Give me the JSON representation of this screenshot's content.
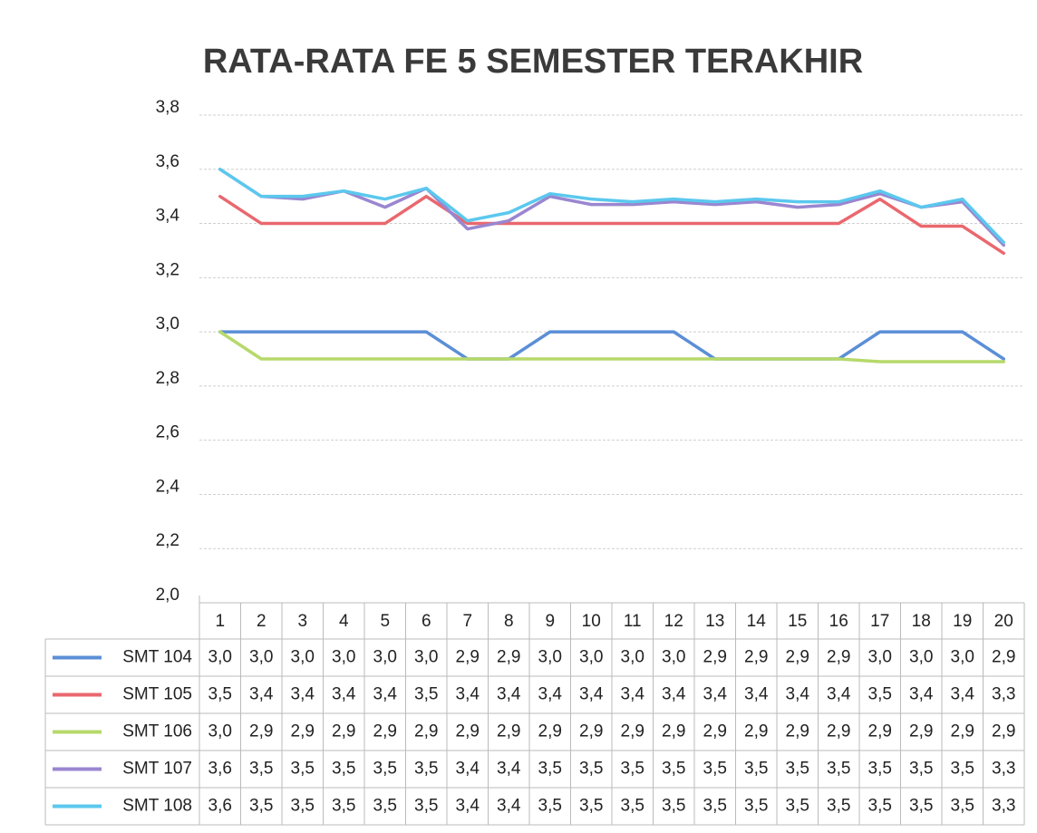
{
  "chart_data": {
    "type": "line",
    "title": "RATA-RATA FE 5 SEMESTER TERAKHIR",
    "categories": [
      "1",
      "2",
      "3",
      "4",
      "5",
      "6",
      "7",
      "8",
      "9",
      "10",
      "11",
      "12",
      "13",
      "14",
      "15",
      "16",
      "17",
      "18",
      "19",
      "20"
    ],
    "ylim": [
      2.0,
      3.8
    ],
    "yticks": [
      {
        "value": 2.0,
        "label": "2,0"
      },
      {
        "value": 2.2,
        "label": "2,2"
      },
      {
        "value": 2.4,
        "label": "2,4"
      },
      {
        "value": 2.6,
        "label": "2,6"
      },
      {
        "value": 2.8,
        "label": "2,8"
      },
      {
        "value": 3.0,
        "label": "3,0"
      },
      {
        "value": 3.2,
        "label": "3,2"
      },
      {
        "value": 3.4,
        "label": "3,4"
      },
      {
        "value": 3.6,
        "label": "3,6"
      },
      {
        "value": 3.8,
        "label": "3,8"
      }
    ],
    "grid": true,
    "series": [
      {
        "name": "SMT 104",
        "color": "#5b8fd6",
        "values": [
          3.0,
          3.0,
          3.0,
          3.0,
          3.0,
          3.0,
          2.9,
          2.9,
          3.0,
          3.0,
          3.0,
          3.0,
          2.9,
          2.9,
          2.9,
          2.9,
          3.0,
          3.0,
          3.0,
          2.9
        ],
        "value_labels": [
          "3,0",
          "3,0",
          "3,0",
          "3,0",
          "3,0",
          "3,0",
          "2,9",
          "2,9",
          "3,0",
          "3,0",
          "3,0",
          "3,0",
          "2,9",
          "2,9",
          "2,9",
          "2,9",
          "3,0",
          "3,0",
          "3,0",
          "2,9"
        ]
      },
      {
        "name": "SMT 105",
        "color": "#e9686e",
        "values": [
          3.5,
          3.4,
          3.4,
          3.4,
          3.4,
          3.5,
          3.4,
          3.4,
          3.4,
          3.4,
          3.4,
          3.4,
          3.4,
          3.4,
          3.4,
          3.4,
          3.49,
          3.39,
          3.39,
          3.29
        ],
        "value_labels": [
          "3,5",
          "3,4",
          "3,4",
          "3,4",
          "3,4",
          "3,5",
          "3,4",
          "3,4",
          "3,4",
          "3,4",
          "3,4",
          "3,4",
          "3,4",
          "3,4",
          "3,4",
          "3,4",
          "3,5",
          "3,4",
          "3,4",
          "3,3"
        ]
      },
      {
        "name": "SMT 106",
        "color": "#b6d96a",
        "values": [
          3.0,
          2.9,
          2.9,
          2.9,
          2.9,
          2.9,
          2.9,
          2.9,
          2.9,
          2.9,
          2.9,
          2.9,
          2.9,
          2.9,
          2.9,
          2.9,
          2.89,
          2.89,
          2.89,
          2.89
        ],
        "value_labels": [
          "3,0",
          "2,9",
          "2,9",
          "2,9",
          "2,9",
          "2,9",
          "2,9",
          "2,9",
          "2,9",
          "2,9",
          "2,9",
          "2,9",
          "2,9",
          "2,9",
          "2,9",
          "2,9",
          "2,9",
          "2,9",
          "2,9",
          "2,9"
        ]
      },
      {
        "name": "SMT 107",
        "color": "#9a86d0",
        "values": [
          3.6,
          3.5,
          3.49,
          3.52,
          3.46,
          3.53,
          3.38,
          3.41,
          3.5,
          3.47,
          3.47,
          3.48,
          3.47,
          3.48,
          3.46,
          3.47,
          3.51,
          3.46,
          3.48,
          3.32
        ],
        "value_labels": [
          "3,6",
          "3,5",
          "3,5",
          "3,5",
          "3,5",
          "3,5",
          "3,4",
          "3,4",
          "3,5",
          "3,5",
          "3,5",
          "3,5",
          "3,5",
          "3,5",
          "3,5",
          "3,5",
          "3,5",
          "3,5",
          "3,5",
          "3,3"
        ]
      },
      {
        "name": "SMT 108",
        "color": "#5bc8ee",
        "values": [
          3.6,
          3.5,
          3.5,
          3.52,
          3.49,
          3.53,
          3.41,
          3.44,
          3.51,
          3.49,
          3.48,
          3.49,
          3.48,
          3.49,
          3.48,
          3.48,
          3.52,
          3.46,
          3.49,
          3.33
        ],
        "value_labels": [
          "3,6",
          "3,5",
          "3,5",
          "3,5",
          "3,5",
          "3,5",
          "3,4",
          "3,4",
          "3,5",
          "3,5",
          "3,5",
          "3,5",
          "3,5",
          "3,5",
          "3,5",
          "3,5",
          "3,5",
          "3,5",
          "3,5",
          "3,3"
        ]
      }
    ]
  }
}
